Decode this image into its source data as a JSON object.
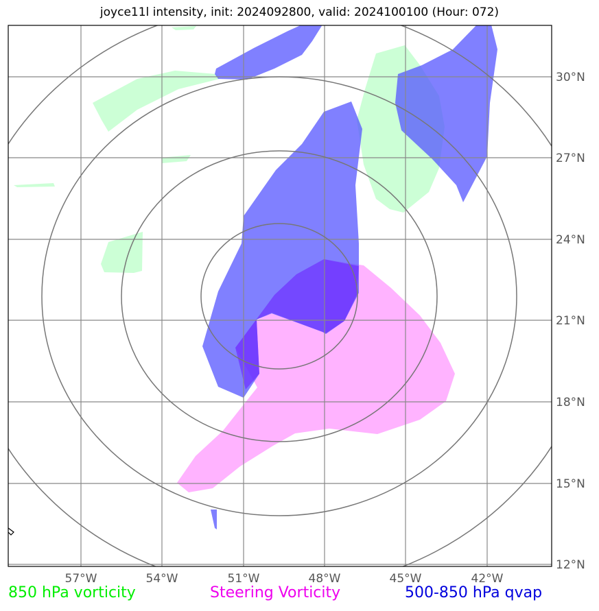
{
  "title": "joyce11l intensity, init: 2024092800, valid: 2024100100 (Hour: 072)",
  "x_ticks": [
    "57°W",
    "54°W",
    "51°W",
    "48°W",
    "45°W",
    "42°W"
  ],
  "y_ticks": [
    "30°N",
    "27°N",
    "24°N",
    "21°N",
    "18°N",
    "15°N",
    "12°N"
  ],
  "legend": [
    {
      "label": "850 hPa vorticity",
      "color": "#00ee00"
    },
    {
      "label": "Steering Vorticity",
      "color": "#ee00ee"
    },
    {
      "label": "500-850 hPa qvap",
      "color": "#0000dd"
    }
  ],
  "layers": {
    "vorticity_850_fill": "#ccffd6",
    "steering_fill": "#ffb3ff",
    "qvap_fill": "#5555ff"
  }
}
